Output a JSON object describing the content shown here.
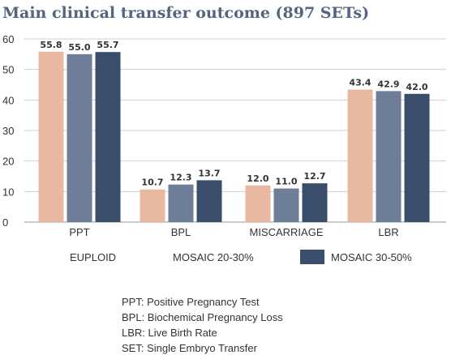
{
  "chart_data": {
    "type": "bar",
    "title": "Main clinical transfer outcome (897 SETs)",
    "xlabel": "",
    "ylabel": "",
    "ylim": [
      0,
      60
    ],
    "yticks": [
      0,
      10,
      20,
      30,
      40,
      50,
      60
    ],
    "categories": [
      "PPT",
      "BPL",
      "MISCARRIAGE",
      "LBR"
    ],
    "series": [
      {
        "name": "EUPLOID",
        "color": "#e8b8a0",
        "values": [
          55.8,
          10.7,
          12.0,
          43.4
        ]
      },
      {
        "name": "MOSAIC 20-30%",
        "color": "#6e7e99",
        "values": [
          55.0,
          12.3,
          11.0,
          42.9
        ]
      },
      {
        "name": "MOSAIC 30-50%",
        "color": "#3a4d6a",
        "values": [
          55.7,
          13.7,
          12.7,
          42.0
        ]
      }
    ],
    "grid": true,
    "legend": "bottom"
  },
  "notes": [
    "PPT: Positive Pregnancy Test",
    "BPL: Biochemical Pregnancy Loss",
    "LBR: Live Birth Rate",
    "SET: Single Embryo Transfer"
  ]
}
